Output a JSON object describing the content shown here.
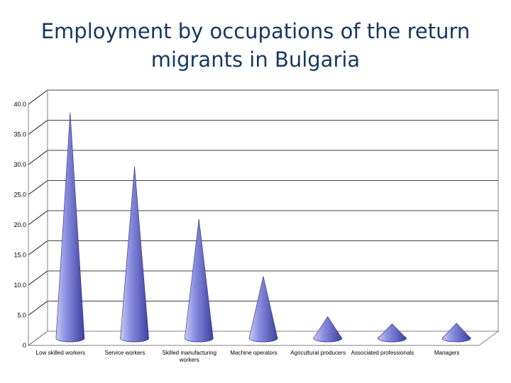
{
  "title_lines": [
    "Employment by occupations of the return",
    "migrants in Bulgaria"
  ],
  "chart_data": {
    "type": "bar",
    "style": "3d-cone",
    "title": "Employment by occupations of the return migrants in Bulgaria",
    "categories": [
      "Low skilled workers",
      "Service workers",
      "Skilled manufacturing workers",
      "Machine operators",
      "Agricultural producers",
      "Associated professionals",
      "Managers"
    ],
    "category_lines": [
      [
        "Low skilled workers"
      ],
      [
        "Service workers"
      ],
      [
        "Skilled manufacturing",
        "workers"
      ],
      [
        "Machine operators"
      ],
      [
        "Agricultural producers"
      ],
      [
        "Associated professionals"
      ],
      [
        "Managers"
      ]
    ],
    "values": [
      37.5,
      28.5,
      19.8,
      10.3,
      3.6,
      2.4,
      2.5
    ],
    "yticks": [
      "0",
      "5.0",
      "10.0",
      "15.0",
      "20.0",
      "25.0",
      "30.0",
      "35.0",
      "40.0"
    ],
    "ylim": [
      0,
      40
    ],
    "grid": true,
    "legend": "none",
    "colors": {
      "cone_light": "#c8cbf2",
      "cone_mid": "#8a8fe0",
      "cone_dark": "#3d40a0",
      "grid": "#000000",
      "title": "#17375e"
    }
  }
}
